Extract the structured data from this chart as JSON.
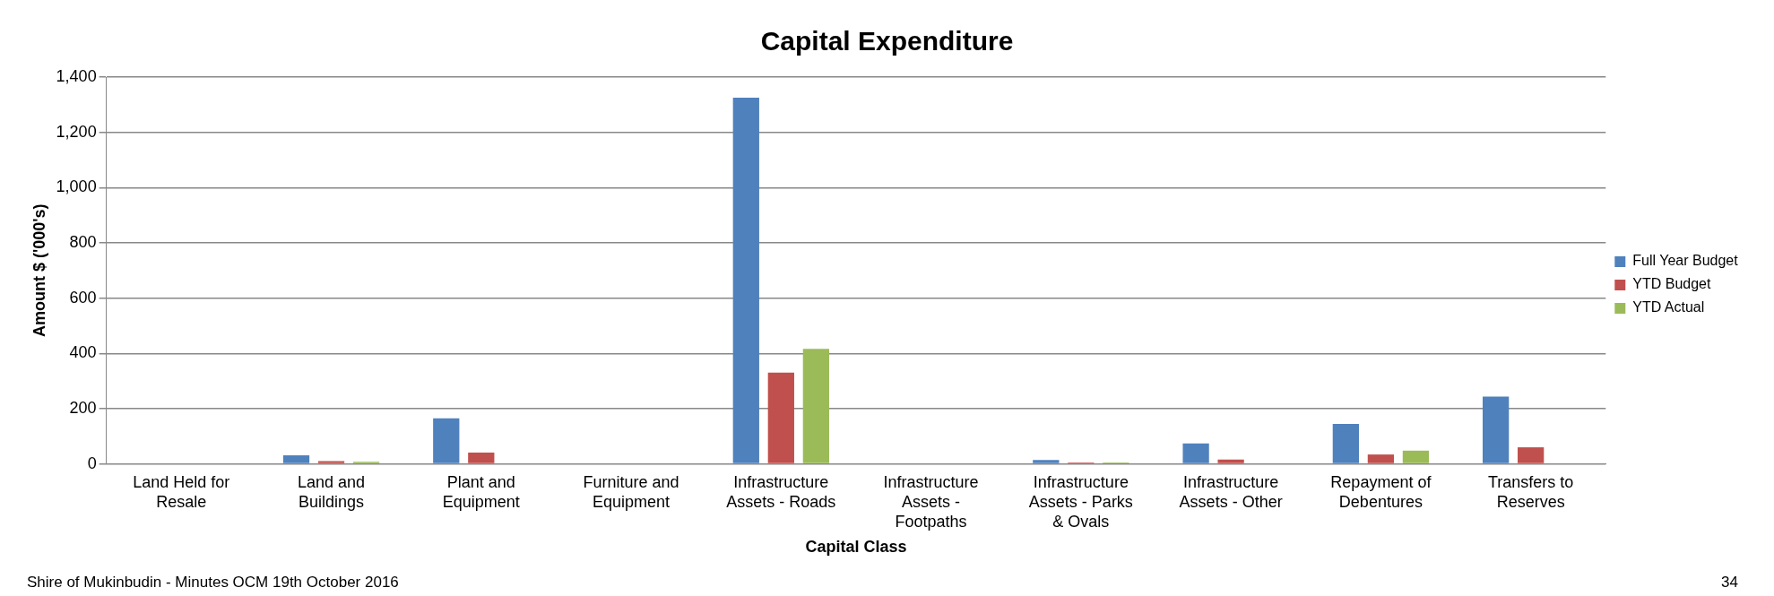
{
  "chart_data": {
    "type": "bar",
    "title": "Capital Expenditure",
    "xlabel": "Capital Class",
    "ylabel": "Amount $ ('000's)",
    "categories": [
      "Land Held for Resale",
      "Land and Buildings",
      "Plant and Equipment",
      "Furniture and Equipment",
      "Infrastructure Assets - Roads",
      "Infrastructure Assets - Footpaths",
      "Infrastructure Assets - Parks & Ovals",
      "Infrastructure Assets - Other",
      "Repayment of Debentures",
      "Transfers to Reserves"
    ],
    "series": [
      {
        "name": "Full Year Budget",
        "color": "#4f81bd",
        "values": [
          0,
          31,
          165,
          0,
          1325,
          0,
          14,
          74,
          145,
          244
        ]
      },
      {
        "name": "YTD Budget",
        "color": "#c0504d",
        "values": [
          0,
          10,
          41,
          0,
          330,
          0,
          5,
          16,
          34,
          60
        ]
      },
      {
        "name": "YTD Actual",
        "color": "#9bbb59",
        "values": [
          0,
          8,
          0,
          0,
          416,
          0,
          5,
          0,
          48,
          0
        ]
      }
    ],
    "ylim": [
      0,
      1400
    ],
    "yticks": [
      0,
      200,
      400,
      600,
      800,
      {
        "value": 1000,
        "label": "1,000"
      },
      {
        "value": 1200,
        "label": "1,200"
      },
      {
        "value": 1400,
        "label": "1,400"
      }
    ],
    "grid": "y",
    "legend": "right",
    "annotations": [
      "Shire of Mukinbudin - Minutes OCM 19th October 2016",
      "34"
    ]
  }
}
